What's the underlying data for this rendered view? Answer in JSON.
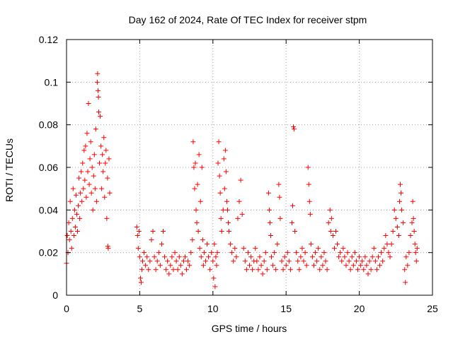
{
  "chart_data": {
    "type": "scatter",
    "title": "Day 162 of 2024, Rate Of TEC Index for receiver stpm",
    "xlabel": "GPS time / hours",
    "ylabel": "ROTI / TECUs",
    "xlim": [
      0,
      25
    ],
    "ylim": [
      0,
      0.12
    ],
    "x_ticks": [
      0,
      5,
      10,
      15,
      20,
      25
    ],
    "x_tick_labels": [
      "0",
      "5",
      "10",
      "15",
      "20",
      "25"
    ],
    "y_ticks": [
      0,
      0.02,
      0.04,
      0.06,
      0.08,
      0.1,
      0.12
    ],
    "y_tick_labels": [
      "0",
      "0.02",
      "0.04",
      "0.06",
      "0.08",
      "0.1",
      "0.12"
    ],
    "grid": true,
    "marker": "+",
    "color": "#ff0000",
    "series": [
      {
        "name": "ROTI",
        "points": [
          [
            0.0,
            0.015
          ],
          [
            0.05,
            0.028
          ],
          [
            0.1,
            0.02
          ],
          [
            0.15,
            0.034
          ],
          [
            0.2,
            0.026
          ],
          [
            0.25,
            0.044
          ],
          [
            0.3,
            0.03
          ],
          [
            0.35,
            0.022
          ],
          [
            0.4,
            0.036
          ],
          [
            0.45,
            0.05
          ],
          [
            0.5,
            0.028
          ],
          [
            0.55,
            0.04
          ],
          [
            0.6,
            0.032
          ],
          [
            0.65,
            0.047
          ],
          [
            0.7,
            0.038
          ],
          [
            0.75,
            0.03
          ],
          [
            0.8,
            0.042
          ],
          [
            0.85,
            0.055
          ],
          [
            0.9,
            0.036
          ],
          [
            0.95,
            0.048
          ],
          [
            1.0,
            0.058
          ],
          [
            1.05,
            0.044
          ],
          [
            1.1,
            0.062
          ],
          [
            1.15,
            0.05
          ],
          [
            1.2,
            0.068
          ],
          [
            1.25,
            0.054
          ],
          [
            1.3,
            0.07
          ],
          [
            1.35,
            0.046
          ],
          [
            1.4,
            0.076
          ],
          [
            1.45,
            0.058
          ],
          [
            1.5,
            0.09
          ],
          [
            1.55,
            0.052
          ],
          [
            1.6,
            0.064
          ],
          [
            1.65,
            0.072
          ],
          [
            1.7,
            0.048
          ],
          [
            1.75,
            0.06
          ],
          [
            1.8,
            0.04
          ],
          [
            1.85,
            0.056
          ],
          [
            1.9,
            0.066
          ],
          [
            1.95,
            0.05
          ],
          [
            2.0,
            0.078
          ],
          [
            2.05,
            0.044
          ],
          [
            2.1,
            0.1
          ],
          [
            2.12,
            0.104
          ],
          [
            2.15,
            0.096
          ],
          [
            2.18,
            0.093
          ],
          [
            2.2,
            0.086
          ],
          [
            2.25,
            0.062
          ],
          [
            2.3,
            0.084
          ],
          [
            2.35,
            0.07
          ],
          [
            2.4,
            0.05
          ],
          [
            2.45,
            0.066
          ],
          [
            2.5,
            0.058
          ],
          [
            2.55,
            0.074
          ],
          [
            2.6,
            0.046
          ],
          [
            2.65,
            0.062
          ],
          [
            2.7,
            0.068
          ],
          [
            2.75,
            0.036
          ],
          [
            2.8,
            0.055
          ],
          [
            2.82,
            0.023
          ],
          [
            2.85,
            0.022
          ],
          [
            2.9,
            0.064
          ],
          [
            2.95,
            0.048
          ],
          [
            4.8,
            0.032
          ],
          [
            4.85,
            0.028
          ],
          [
            4.9,
            0.022
          ],
          [
            4.95,
            0.03
          ],
          [
            5.0,
            0.018
          ],
          [
            5.05,
            0.008
          ],
          [
            5.1,
            0.006
          ],
          [
            5.15,
            0.012
          ],
          [
            5.2,
            0.016
          ],
          [
            5.3,
            0.02
          ],
          [
            5.4,
            0.014
          ],
          [
            5.5,
            0.018
          ],
          [
            5.6,
            0.012
          ],
          [
            5.7,
            0.016
          ],
          [
            5.8,
            0.026
          ],
          [
            5.9,
            0.03
          ],
          [
            6.0,
            0.018
          ],
          [
            6.1,
            0.012
          ],
          [
            6.2,
            0.016
          ],
          [
            6.3,
            0.02
          ],
          [
            6.4,
            0.014
          ],
          [
            6.5,
            0.024
          ],
          [
            6.6,
            0.03
          ],
          [
            6.7,
            0.018
          ],
          [
            6.8,
            0.012
          ],
          [
            6.9,
            0.016
          ],
          [
            7.0,
            0.01
          ],
          [
            7.1,
            0.014
          ],
          [
            7.2,
            0.018
          ],
          [
            7.3,
            0.012
          ],
          [
            7.4,
            0.02
          ],
          [
            7.5,
            0.016
          ],
          [
            7.6,
            0.012
          ],
          [
            7.7,
            0.018
          ],
          [
            7.8,
            0.014
          ],
          [
            7.9,
            0.01
          ],
          [
            8.0,
            0.016
          ],
          [
            8.1,
            0.018
          ],
          [
            8.2,
            0.012
          ],
          [
            8.3,
            0.016
          ],
          [
            8.4,
            0.014
          ],
          [
            8.5,
            0.02
          ],
          [
            8.6,
            0.026
          ],
          [
            8.65,
            0.072
          ],
          [
            8.7,
            0.06
          ],
          [
            8.75,
            0.05
          ],
          [
            8.8,
            0.062
          ],
          [
            8.85,
            0.04
          ],
          [
            8.9,
            0.034
          ],
          [
            8.95,
            0.052
          ],
          [
            9.0,
            0.03
          ],
          [
            9.05,
            0.066
          ],
          [
            9.1,
            0.022
          ],
          [
            9.15,
            0.044
          ],
          [
            9.2,
            0.018
          ],
          [
            9.25,
            0.06
          ],
          [
            9.3,
            0.026
          ],
          [
            9.35,
            0.014
          ],
          [
            9.4,
            0.02
          ],
          [
            9.5,
            0.016
          ],
          [
            9.6,
            0.024
          ],
          [
            9.7,
            0.018
          ],
          [
            9.8,
            0.012
          ],
          [
            9.9,
            0.02
          ],
          [
            10.0,
            0.016
          ],
          [
            10.05,
            0.008
          ],
          [
            10.1,
            0.024
          ],
          [
            10.15,
            0.004
          ],
          [
            10.2,
            0.018
          ],
          [
            10.25,
            0.014
          ],
          [
            10.3,
            0.02
          ],
          [
            10.35,
            0.062
          ],
          [
            10.4,
            0.072
          ],
          [
            10.45,
            0.056
          ],
          [
            10.5,
            0.048
          ],
          [
            10.55,
            0.036
          ],
          [
            10.6,
            0.03
          ],
          [
            10.7,
            0.04
          ],
          [
            10.75,
            0.064
          ],
          [
            10.8,
            0.05
          ],
          [
            10.85,
            0.068
          ],
          [
            10.9,
            0.058
          ],
          [
            10.95,
            0.044
          ],
          [
            11.0,
            0.04
          ],
          [
            11.05,
            0.034
          ],
          [
            11.1,
            0.03
          ],
          [
            11.2,
            0.024
          ],
          [
            11.3,
            0.02
          ],
          [
            11.4,
            0.016
          ],
          [
            11.5,
            0.022
          ],
          [
            11.6,
            0.018
          ],
          [
            11.7,
            0.036
          ],
          [
            11.8,
            0.044
          ],
          [
            11.9,
            0.054
          ],
          [
            12.0,
            0.038
          ],
          [
            12.1,
            0.022
          ],
          [
            12.2,
            0.016
          ],
          [
            12.3,
            0.012
          ],
          [
            12.4,
            0.02
          ],
          [
            12.5,
            0.014
          ],
          [
            12.6,
            0.018
          ],
          [
            12.7,
            0.012
          ],
          [
            12.8,
            0.016
          ],
          [
            12.9,
            0.022
          ],
          [
            13.0,
            0.016
          ],
          [
            13.1,
            0.012
          ],
          [
            13.2,
            0.018
          ],
          [
            13.3,
            0.014
          ],
          [
            13.4,
            0.01
          ],
          [
            13.5,
            0.016
          ],
          [
            13.6,
            0.02
          ],
          [
            13.7,
            0.012
          ],
          [
            13.8,
            0.048
          ],
          [
            13.85,
            0.04
          ],
          [
            13.9,
            0.034
          ],
          [
            13.95,
            0.028
          ],
          [
            14.0,
            0.018
          ],
          [
            14.1,
            0.014
          ],
          [
            14.2,
            0.02
          ],
          [
            14.3,
            0.012
          ],
          [
            14.4,
            0.024
          ],
          [
            14.5,
            0.052
          ],
          [
            14.55,
            0.046
          ],
          [
            14.6,
            0.036
          ],
          [
            14.7,
            0.016
          ],
          [
            14.8,
            0.012
          ],
          [
            14.9,
            0.018
          ],
          [
            15.0,
            0.014
          ],
          [
            15.1,
            0.02
          ],
          [
            15.2,
            0.016
          ],
          [
            15.3,
            0.012
          ],
          [
            15.4,
            0.034
          ],
          [
            15.45,
            0.042
          ],
          [
            15.5,
            0.079
          ],
          [
            15.55,
            0.078
          ],
          [
            15.6,
            0.03
          ],
          [
            15.7,
            0.02
          ],
          [
            15.8,
            0.016
          ],
          [
            15.9,
            0.012
          ],
          [
            16.0,
            0.018
          ],
          [
            16.1,
            0.022
          ],
          [
            16.2,
            0.016
          ],
          [
            16.3,
            0.02
          ],
          [
            16.4,
            0.014
          ],
          [
            16.5,
            0.06
          ],
          [
            16.55,
            0.052
          ],
          [
            16.6,
            0.044
          ],
          [
            16.65,
            0.038
          ],
          [
            16.7,
            0.024
          ],
          [
            16.8,
            0.018
          ],
          [
            16.9,
            0.014
          ],
          [
            17.0,
            0.02
          ],
          [
            17.1,
            0.016
          ],
          [
            17.2,
            0.022
          ],
          [
            17.3,
            0.012
          ],
          [
            17.4,
            0.018
          ],
          [
            17.5,
            0.014
          ],
          [
            17.6,
            0.02
          ],
          [
            17.7,
            0.016
          ],
          [
            17.8,
            0.012
          ],
          [
            17.9,
            0.034
          ],
          [
            18.0,
            0.04
          ],
          [
            18.05,
            0.03
          ],
          [
            18.1,
            0.036
          ],
          [
            18.2,
            0.028
          ],
          [
            18.3,
            0.022
          ],
          [
            18.4,
            0.03
          ],
          [
            18.5,
            0.024
          ],
          [
            18.6,
            0.018
          ],
          [
            18.7,
            0.02
          ],
          [
            18.8,
            0.016
          ],
          [
            18.9,
            0.022
          ],
          [
            19.0,
            0.018
          ],
          [
            19.1,
            0.014
          ],
          [
            19.2,
            0.02
          ],
          [
            19.3,
            0.016
          ],
          [
            19.4,
            0.012
          ],
          [
            19.5,
            0.018
          ],
          [
            19.6,
            0.014
          ],
          [
            19.7,
            0.02
          ],
          [
            19.8,
            0.016
          ],
          [
            19.9,
            0.012
          ],
          [
            20.0,
            0.018
          ],
          [
            20.1,
            0.014
          ],
          [
            20.2,
            0.016
          ],
          [
            20.3,
            0.012
          ],
          [
            20.4,
            0.018
          ],
          [
            20.5,
            0.014
          ],
          [
            20.6,
            0.01
          ],
          [
            20.7,
            0.016
          ],
          [
            20.8,
            0.012
          ],
          [
            20.9,
            0.018
          ],
          [
            21.0,
            0.022
          ],
          [
            21.1,
            0.016
          ],
          [
            21.2,
            0.012
          ],
          [
            21.3,
            0.018
          ],
          [
            21.4,
            0.014
          ],
          [
            21.5,
            0.02
          ],
          [
            21.6,
            0.016
          ],
          [
            21.7,
            0.022
          ],
          [
            21.8,
            0.028
          ],
          [
            21.9,
            0.024
          ],
          [
            22.0,
            0.02
          ],
          [
            22.1,
            0.018
          ],
          [
            22.2,
            0.024
          ],
          [
            22.3,
            0.03
          ],
          [
            22.4,
            0.04
          ],
          [
            22.5,
            0.036
          ],
          [
            22.6,
            0.032
          ],
          [
            22.7,
            0.028
          ],
          [
            22.75,
            0.044
          ],
          [
            22.8,
            0.052
          ],
          [
            22.85,
            0.048
          ],
          [
            22.9,
            0.04
          ],
          [
            23.0,
            0.034
          ],
          [
            23.1,
            0.012
          ],
          [
            23.15,
            0.006
          ],
          [
            23.2,
            0.018
          ],
          [
            23.3,
            0.014
          ],
          [
            23.4,
            0.02
          ],
          [
            23.5,
            0.028
          ],
          [
            23.6,
            0.034
          ],
          [
            23.65,
            0.044
          ],
          [
            23.7,
            0.036
          ],
          [
            23.75,
            0.03
          ],
          [
            23.8,
            0.024
          ],
          [
            23.85,
            0.02
          ],
          [
            23.9,
            0.016
          ],
          [
            23.95,
            0.022
          ]
        ]
      }
    ]
  }
}
